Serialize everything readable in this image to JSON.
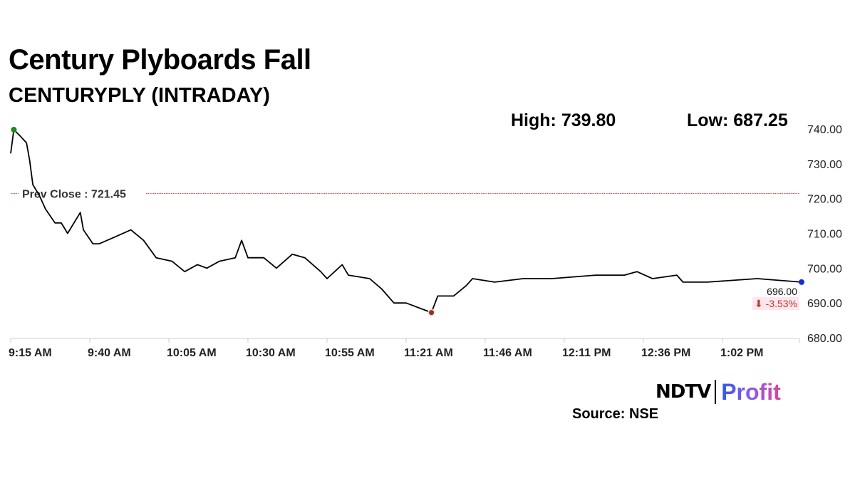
{
  "chart_data": {
    "type": "line",
    "title": "Century Plyboards Fall",
    "subtitle": "CENTURYPLY (INTRADAY)",
    "high_label": "High: 739.80",
    "low_label": "Low: 687.25",
    "high": 739.8,
    "low": 687.25,
    "prev_close_label": "Prev Close : 721.45",
    "prev_close": 721.45,
    "last_price_label": "696.00",
    "change_label": "⬇ -3.53%",
    "ylim": [
      680,
      740
    ],
    "y_ticks": [
      "680.00",
      "690.00",
      "700.00",
      "710.00",
      "720.00",
      "730.00",
      "740.00"
    ],
    "x_ticks": [
      "9:15 AM",
      "9:40 AM",
      "10:05 AM",
      "10:30 AM",
      "10:55 AM",
      "11:21 AM",
      "11:46 AM",
      "12:11 PM",
      "12:36 PM",
      "1:02 PM"
    ],
    "grid": false,
    "colors": {
      "line": "#000000",
      "prev_close": "#e03030",
      "high_marker": "#1a8a1a",
      "low_marker": "#8b3a10",
      "last_marker": "#1030d0",
      "change": "#c0392b"
    },
    "series": [
      {
        "points": [
          [
            "9:15",
            733
          ],
          [
            "9:16",
            739.8
          ],
          [
            "9:18",
            738
          ],
          [
            "9:20",
            736
          ],
          [
            "9:21",
            731
          ],
          [
            "9:22",
            724
          ],
          [
            "9:24",
            721
          ],
          [
            "9:26",
            717
          ],
          [
            "9:29",
            713
          ],
          [
            "9:31",
            713
          ],
          [
            "9:33",
            710
          ],
          [
            "9:37",
            716
          ],
          [
            "9:38",
            711
          ],
          [
            "9:41",
            707
          ],
          [
            "9:43",
            707
          ],
          [
            "9:48",
            709
          ],
          [
            "9:53",
            711
          ],
          [
            "9:57",
            708
          ],
          [
            "10:01",
            703
          ],
          [
            "10:06",
            702
          ],
          [
            "10:10",
            699
          ],
          [
            "10:14",
            701
          ],
          [
            "10:17",
            700
          ],
          [
            "10:21",
            702
          ],
          [
            "10:26",
            703
          ],
          [
            "10:28",
            708
          ],
          [
            "10:30",
            703
          ],
          [
            "10:35",
            703
          ],
          [
            "10:39",
            700
          ],
          [
            "10:44",
            704
          ],
          [
            "10:48",
            703
          ],
          [
            "10:53",
            699
          ],
          [
            "10:55",
            697
          ],
          [
            "11:00",
            701
          ],
          [
            "11:02",
            698
          ],
          [
            "11:09",
            697
          ],
          [
            "11:13",
            694
          ],
          [
            "11:17",
            690
          ],
          [
            "11:21",
            690
          ],
          [
            "11:29",
            687.25
          ],
          [
            "11:31",
            692
          ],
          [
            "11:36",
            692
          ],
          [
            "11:40",
            695
          ],
          [
            "11:42",
            697
          ],
          [
            "11:49",
            696
          ],
          [
            "11:58",
            697
          ],
          [
            "12:07",
            697
          ],
          [
            "12:21",
            698
          ],
          [
            "12:30",
            698
          ],
          [
            "12:34",
            699
          ],
          [
            "12:39",
            697
          ],
          [
            "12:47",
            698
          ],
          [
            "12:49",
            696
          ],
          [
            "12:57",
            696
          ],
          [
            "13:13",
            697
          ],
          [
            "13:27",
            696
          ]
        ]
      }
    ]
  },
  "footer": {
    "brand_left": "NDTV",
    "brand_right": "Profit",
    "source": "Source: NSE"
  }
}
